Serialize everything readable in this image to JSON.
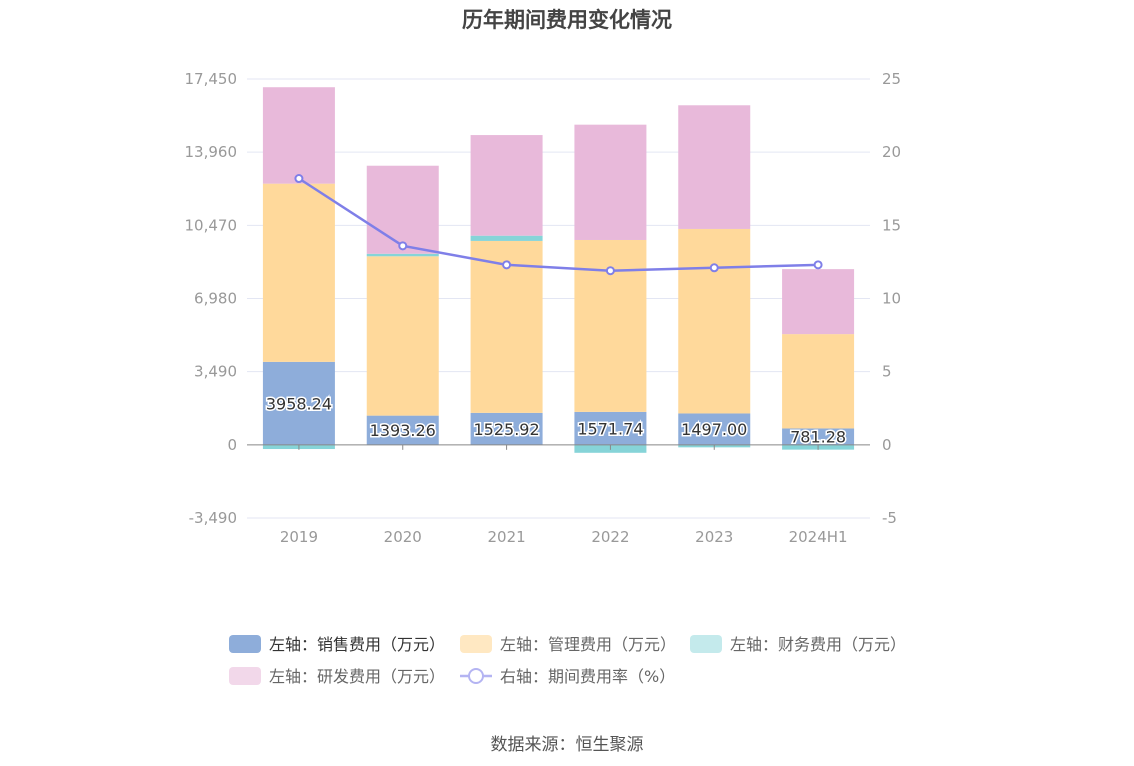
{
  "chart_data": {
    "type": "bar",
    "title": "历年期间费用变化情况",
    "categories": [
      "2019",
      "2020",
      "2021",
      "2022",
      "2023",
      "2024H1"
    ],
    "y_left": {
      "ticks": [
        17450,
        13960,
        10470,
        6980,
        3490,
        0,
        -3490
      ],
      "tick_labels": [
        "17,450",
        "13,960",
        "10,470",
        "6,980",
        "3,490",
        "0",
        "-3,490"
      ],
      "min": -3490,
      "max": 17450
    },
    "y_right": {
      "ticks": [
        25,
        20,
        15,
        10,
        5,
        0,
        -5
      ],
      "tick_labels": [
        "25",
        "20",
        "15",
        "10",
        "5",
        "0",
        "-5"
      ],
      "min": -5,
      "max": 25
    },
    "grid": true,
    "legend_position": "bottom",
    "series": [
      {
        "name": "左轴：销售费用（万元）",
        "axis": "left",
        "kind": "bar",
        "color": "#8eadda",
        "values": [
          3958.24,
          1393.26,
          1525.92,
          1571.74,
          1497.0,
          781.28
        ],
        "labels": [
          "3958.24",
          "1393.26",
          "1525.92",
          "1571.74",
          "1497.00",
          "781.28"
        ]
      },
      {
        "name": "左轴：管理费用（万元）",
        "axis": "left",
        "kind": "bar",
        "color": "#ffd99b",
        "values": [
          8500,
          7600,
          8200,
          8200,
          8800,
          4500
        ]
      },
      {
        "name": "左轴：财务费用（万元）",
        "axis": "left",
        "kind": "bar",
        "color": "#86d4d8",
        "values": [
          -200,
          120,
          250,
          -380,
          -120,
          -230
        ]
      },
      {
        "name": "左轴：研发费用（万元）",
        "axis": "left",
        "kind": "bar",
        "color": "#e8b9da",
        "values": [
          4600,
          4200,
          4800,
          5500,
          5900,
          3100
        ]
      },
      {
        "name": "右轴：期间费用率（%）",
        "axis": "right",
        "kind": "line",
        "color": "#7f7fe8",
        "values": [
          18.2,
          13.6,
          12.3,
          11.9,
          12.1,
          12.3
        ]
      }
    ]
  },
  "legend_items": [
    {
      "label": "左轴：销售费用（万元）",
      "color": "#8eadda",
      "kind": "bar"
    },
    {
      "label": "左轴：管理费用（万元）",
      "color": "#ffe8c2",
      "kind": "bar"
    },
    {
      "label": "左轴：财务费用（万元）",
      "color": "#c4eaec",
      "kind": "bar"
    },
    {
      "label": "左轴：研发费用（万元）",
      "color": "#f2d8ea",
      "kind": "bar"
    },
    {
      "label": "右轴：期间费用率（%）",
      "color": "#b4b4f2",
      "kind": "line"
    }
  ],
  "source": "数据来源：恒生聚源"
}
